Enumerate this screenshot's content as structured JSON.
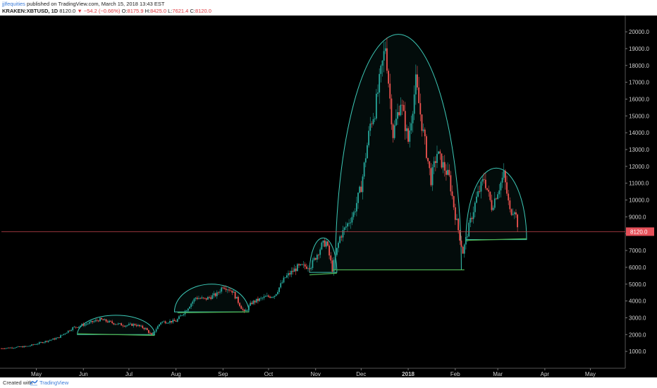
{
  "header": {
    "user": "jjlfequities",
    "published": "published on TradingView.com, March 15, 2018 13:43 EST",
    "symbol": "KRAKEN:XBTUSD, 1D",
    "price": "8120.0",
    "change": "▼ −54.2 (−0.66%)",
    "open_label": "O:",
    "open": "8175.9",
    "high_label": "H:",
    "high": "8425.0",
    "low_label": "L:",
    "low": "7621.4",
    "close_label": "C:",
    "close": "8120.0"
  },
  "footer": {
    "created": "Created with",
    "brand": "TradingView"
  },
  "colors": {
    "background": "#000000",
    "up": "#26a69a",
    "down": "#ef5350",
    "arc": "#3cc8b6",
    "neckline": "#4caf50",
    "price_line": "#c0434a",
    "price_badge": "#e55059"
  },
  "chart_data": {
    "type": "candlestick",
    "symbol": "KRAKEN:XBTUSD",
    "interval": "1D",
    "last_price": 8120.0,
    "y_ticks": [
      1000,
      2000,
      3000,
      4000,
      5000,
      6000,
      7000,
      8000,
      9000,
      10000,
      11000,
      12000,
      13000,
      14000,
      15000,
      16000,
      17000,
      18000,
      19000,
      20000
    ],
    "y_tick_labels": [
      "1000.0",
      "2000.0",
      "3000.0",
      "4000.0",
      "5000.0",
      "6000.0",
      "7000.0",
      "8000.0",
      "9000.0",
      "10000.0",
      "11000.0",
      "12000.0",
      "13000.0",
      "14000.0",
      "15000.0",
      "16000.0",
      "17000.0",
      "18000.0",
      "19000.0",
      "20000.0"
    ],
    "ylim": [
      0,
      20800
    ],
    "x_labels": [
      {
        "label": "May",
        "date": "2017-05-01"
      },
      {
        "label": "Jun",
        "date": "2017-06-01"
      },
      {
        "label": "Jul",
        "date": "2017-07-01"
      },
      {
        "label": "Aug",
        "date": "2017-08-01"
      },
      {
        "label": "Sep",
        "date": "2017-09-01"
      },
      {
        "label": "Oct",
        "date": "2017-10-01"
      },
      {
        "label": "Nov",
        "date": "2017-11-01"
      },
      {
        "label": "Dec",
        "date": "2017-12-01"
      },
      {
        "label": "2018",
        "date": "2018-01-01"
      },
      {
        "label": "Feb",
        "date": "2018-02-01"
      },
      {
        "label": "Mar",
        "date": "2018-03-01"
      },
      {
        "label": "Apr",
        "date": "2018-04-01"
      },
      {
        "label": "May",
        "date": "2018-05-01"
      }
    ],
    "xlim": [
      "2017-04-08",
      "2018-05-24"
    ],
    "price_path": [
      [
        "2017-04-08",
        1180
      ],
      [
        "2017-04-25",
        1300
      ],
      [
        "2017-05-05",
        1550
      ],
      [
        "2017-05-15",
        1800
      ],
      [
        "2017-05-25",
        2400
      ],
      [
        "2017-06-05",
        2700
      ],
      [
        "2017-06-12",
        2900
      ],
      [
        "2017-06-20",
        2700
      ],
      [
        "2017-06-28",
        2550
      ],
      [
        "2017-07-05",
        2600
      ],
      [
        "2017-07-12",
        2350
      ],
      [
        "2017-07-16",
        1950
      ],
      [
        "2017-07-22",
        2750
      ],
      [
        "2017-08-01",
        2800
      ],
      [
        "2017-08-07",
        3400
      ],
      [
        "2017-08-14",
        4200
      ],
      [
        "2017-08-20",
        4100
      ],
      [
        "2017-08-28",
        4400
      ],
      [
        "2017-09-01",
        4900
      ],
      [
        "2017-09-07",
        4600
      ],
      [
        "2017-09-15",
        3300
      ],
      [
        "2017-09-20",
        3900
      ],
      [
        "2017-09-28",
        4200
      ],
      [
        "2017-10-05",
        4350
      ],
      [
        "2017-10-12",
        5400
      ],
      [
        "2017-10-20",
        6000
      ],
      [
        "2017-10-29",
        6100
      ],
      [
        "2017-11-05",
        7300
      ],
      [
        "2017-11-08",
        7500
      ],
      [
        "2017-11-12",
        5900
      ],
      [
        "2017-11-17",
        7800
      ],
      [
        "2017-11-26",
        9200
      ],
      [
        "2017-12-01",
        10800
      ],
      [
        "2017-12-07",
        14500
      ],
      [
        "2017-12-10",
        15300
      ],
      [
        "2017-12-17",
        19200
      ],
      [
        "2017-12-22",
        13900
      ],
      [
        "2017-12-27",
        15900
      ],
      [
        "2018-01-01",
        13500
      ],
      [
        "2018-01-06",
        17000
      ],
      [
        "2018-01-10",
        14500
      ],
      [
        "2018-01-16",
        11200
      ],
      [
        "2018-01-20",
        12800
      ],
      [
        "2018-01-28",
        11300
      ],
      [
        "2018-02-01",
        9100
      ],
      [
        "2018-02-06",
        6900
      ],
      [
        "2018-02-10",
        8400
      ],
      [
        "2018-02-15",
        10100
      ],
      [
        "2018-02-20",
        11300
      ],
      [
        "2018-02-25",
        9600
      ],
      [
        "2018-03-05",
        11500
      ],
      [
        "2018-03-09",
        9300
      ],
      [
        "2018-03-12",
        9500
      ],
      [
        "2018-03-15",
        8120
      ]
    ],
    "patterns": [
      {
        "kind": "arc",
        "start": "2017-05-28",
        "end": "2017-07-18",
        "base": 2000,
        "top": 3150
      },
      {
        "kind": "neckline",
        "start": "2017-05-28",
        "end": "2017-07-18",
        "y_start": 2050,
        "y_end": 1950
      },
      {
        "kind": "arc",
        "start": "2017-07-31",
        "end": "2017-09-18",
        "base": 3350,
        "top": 5000
      },
      {
        "kind": "neckline",
        "start": "2017-08-02",
        "end": "2017-09-18",
        "y_start": 3300,
        "y_end": 3350
      },
      {
        "kind": "arc",
        "start": "2017-10-28",
        "end": "2017-11-15",
        "base": 5700,
        "top": 7750
      },
      {
        "kind": "neckline",
        "start": "2017-10-28",
        "end": "2017-11-15",
        "y_start": 5550,
        "y_end": 5650
      },
      {
        "kind": "arc",
        "start": "2017-11-14",
        "end": "2018-02-05",
        "base": 5850,
        "top": 19850
      },
      {
        "kind": "neckline",
        "start": "2017-11-12",
        "end": "2018-02-07",
        "y_start": 5850,
        "y_end": 5850
      },
      {
        "kind": "arc",
        "start": "2018-02-08",
        "end": "2018-03-20",
        "base": 7650,
        "top": 11900
      },
      {
        "kind": "neckline",
        "start": "2018-02-08",
        "end": "2018-03-20",
        "y_start": 7600,
        "y_end": 7700
      }
    ]
  }
}
